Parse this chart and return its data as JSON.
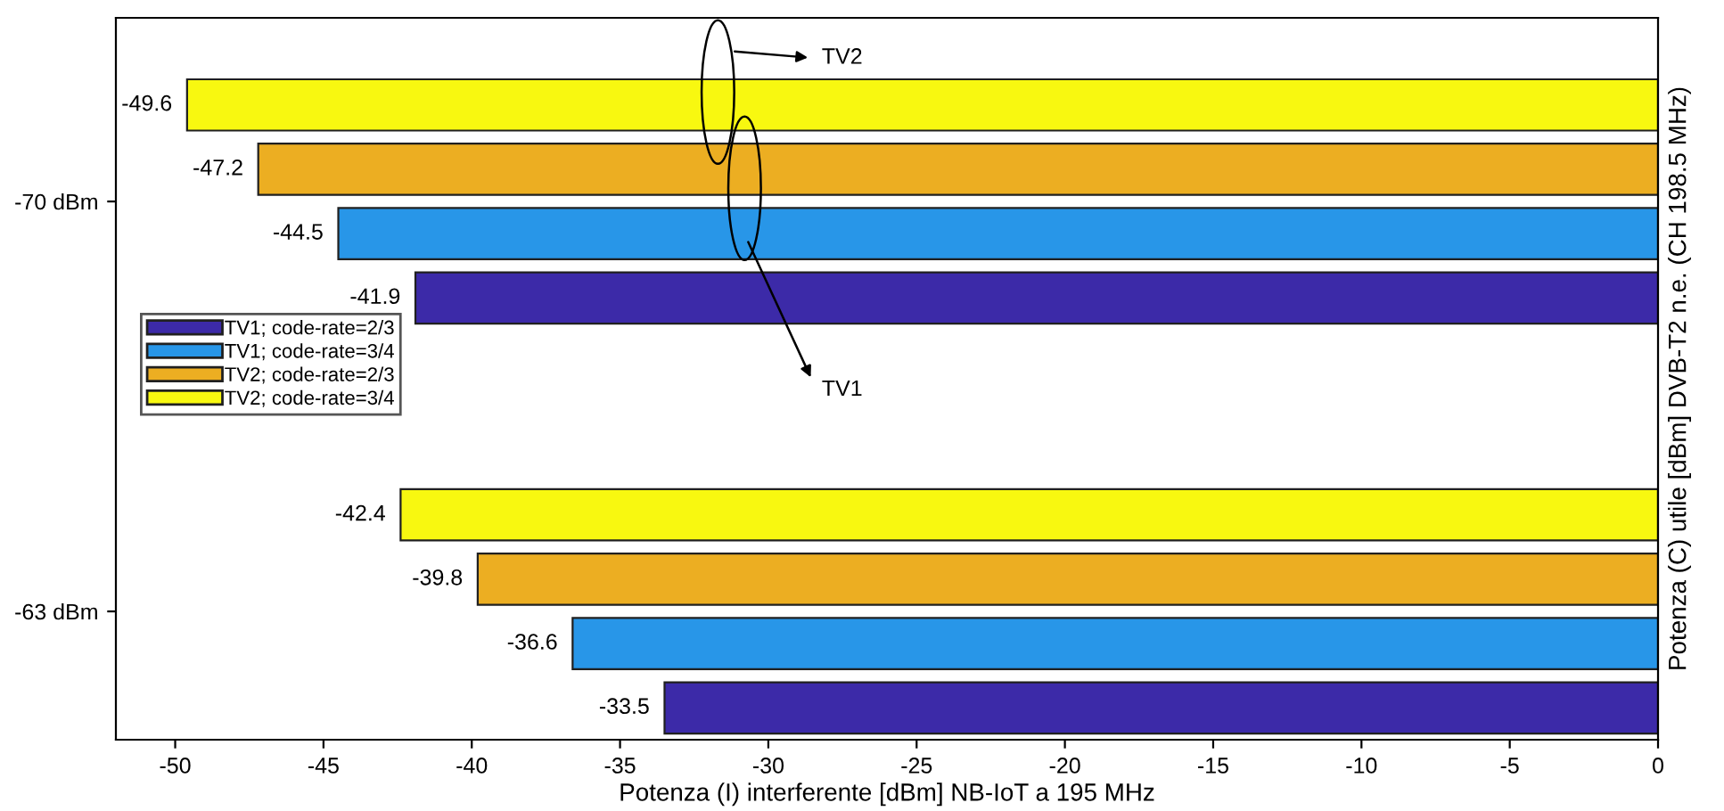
{
  "chart_data": {
    "type": "bar",
    "orientation": "horizontal",
    "categories": [
      "-70 dBm",
      "-63 dBm"
    ],
    "series": [
      {
        "name": "TV1; code-rate=2/3",
        "color": "#3c2aa8",
        "values": [
          -41.9,
          -33.5
        ]
      },
      {
        "name": "TV1; code-rate=3/4",
        "color": "#2896e8",
        "values": [
          -44.5,
          -36.6
        ]
      },
      {
        "name": "TV2; code-rate=2/3",
        "color": "#ecae22",
        "values": [
          -47.2,
          -39.8
        ]
      },
      {
        "name": "TV2; code-rate=3/4",
        "color": "#f8f810",
        "values": [
          -49.6,
          -42.4
        ]
      }
    ],
    "xlim": [
      -52,
      0
    ],
    "xticks": [
      -50,
      -45,
      -40,
      -35,
      -30,
      -25,
      -20,
      -15,
      -10,
      -5,
      0
    ],
    "xlabel": "Potenza (I) interferente [dBm] NB-IoT a 195 MHz",
    "ylabel": "Potenza (C) utile [dBm] DVB-T2 n.e. (CH 198.5 MHz)",
    "data_labels": true,
    "legend": "left",
    "grid": false,
    "annotations": [
      "TV1",
      "TV2"
    ]
  }
}
